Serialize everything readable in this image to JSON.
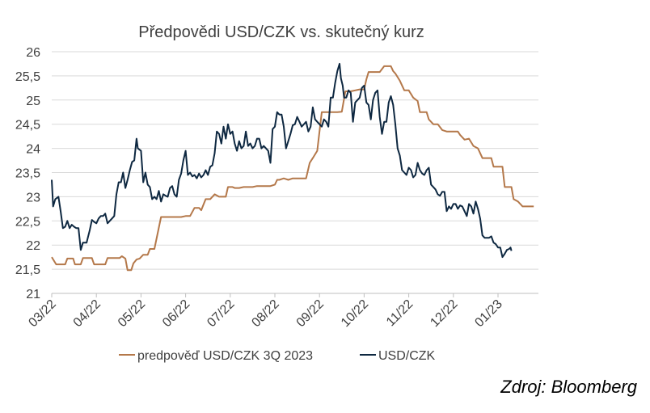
{
  "chart_data": {
    "type": "line",
    "title": "Předpovědi USD/CZK vs. skutečný kurz",
    "xlabel": "",
    "ylabel": "",
    "ylim": [
      21,
      26
    ],
    "y_ticks": [
      "21",
      "21,5",
      "22",
      "22,5",
      "23",
      "23,5",
      "24",
      "24,5",
      "25",
      "25,5",
      "26"
    ],
    "x_ticks": [
      "03/22",
      "04/22",
      "05/22",
      "06/22",
      "07/22",
      "08/22",
      "09/22",
      "10/22",
      "11/22",
      "12/22",
      "01/23"
    ],
    "grid": "horizontal",
    "legend_position": "bottom",
    "series": [
      {
        "name": "predpověď USD/CZK 3Q 2023",
        "color": "#B4784A",
        "points": [
          [
            0.0,
            21.75
          ],
          [
            0.1,
            21.6
          ],
          [
            0.3,
            21.6
          ],
          [
            0.35,
            21.72
          ],
          [
            0.48,
            21.72
          ],
          [
            0.52,
            21.6
          ],
          [
            0.65,
            21.6
          ],
          [
            0.7,
            21.73
          ],
          [
            0.9,
            21.73
          ],
          [
            0.95,
            21.6
          ],
          [
            1.2,
            21.6
          ],
          [
            1.25,
            21.73
          ],
          [
            1.52,
            21.73
          ],
          [
            1.57,
            21.77
          ],
          [
            1.65,
            21.72
          ],
          [
            1.7,
            21.48
          ],
          [
            1.78,
            21.48
          ],
          [
            1.83,
            21.62
          ],
          [
            1.9,
            21.7
          ],
          [
            1.97,
            21.72
          ],
          [
            2.05,
            21.8
          ],
          [
            2.15,
            21.8
          ],
          [
            2.2,
            21.92
          ],
          [
            2.3,
            21.92
          ],
          [
            2.45,
            22.58
          ],
          [
            2.6,
            22.58
          ],
          [
            2.9,
            22.58
          ],
          [
            3.0,
            22.6
          ],
          [
            3.1,
            22.6
          ],
          [
            3.2,
            22.77
          ],
          [
            3.3,
            22.77
          ],
          [
            3.35,
            22.72
          ],
          [
            3.45,
            22.95
          ],
          [
            3.55,
            22.95
          ],
          [
            3.65,
            23.05
          ],
          [
            3.75,
            23.0
          ],
          [
            3.9,
            23.0
          ],
          [
            3.95,
            23.2
          ],
          [
            4.05,
            23.2
          ],
          [
            4.1,
            23.18
          ],
          [
            4.2,
            23.18
          ],
          [
            4.3,
            23.2
          ],
          [
            4.5,
            23.2
          ],
          [
            4.6,
            23.22
          ],
          [
            4.9,
            23.22
          ],
          [
            5.0,
            23.25
          ],
          [
            5.05,
            23.35
          ],
          [
            5.1,
            23.35
          ],
          [
            5.2,
            23.38
          ],
          [
            5.3,
            23.35
          ],
          [
            5.4,
            23.38
          ],
          [
            5.7,
            23.38
          ],
          [
            5.78,
            23.7
          ],
          [
            5.85,
            23.8
          ],
          [
            5.95,
            23.95
          ],
          [
            6.05,
            24.75
          ],
          [
            6.15,
            24.75
          ],
          [
            6.4,
            24.75
          ],
          [
            6.5,
            24.76
          ],
          [
            6.58,
            25.18
          ],
          [
            6.7,
            25.18
          ],
          [
            6.8,
            25.2
          ],
          [
            6.9,
            25.22
          ],
          [
            7.0,
            25.22
          ],
          [
            7.05,
            25.43
          ],
          [
            7.1,
            25.58
          ],
          [
            7.35,
            25.58
          ],
          [
            7.45,
            25.7
          ],
          [
            7.6,
            25.7
          ],
          [
            7.65,
            25.6
          ],
          [
            7.7,
            25.55
          ],
          [
            7.8,
            25.4
          ],
          [
            7.9,
            25.2
          ],
          [
            8.0,
            25.2
          ],
          [
            8.1,
            25.05
          ],
          [
            8.2,
            24.98
          ],
          [
            8.25,
            24.75
          ],
          [
            8.4,
            24.75
          ],
          [
            8.45,
            24.6
          ],
          [
            8.55,
            24.5
          ],
          [
            8.65,
            24.5
          ],
          [
            8.75,
            24.38
          ],
          [
            8.85,
            24.35
          ],
          [
            9.1,
            24.35
          ],
          [
            9.15,
            24.28
          ],
          [
            9.25,
            24.18
          ],
          [
            9.35,
            24.2
          ],
          [
            9.45,
            24.05
          ],
          [
            9.55,
            24.0
          ],
          [
            9.65,
            23.8
          ],
          [
            9.85,
            23.8
          ],
          [
            9.9,
            23.62
          ],
          [
            10.1,
            23.62
          ],
          [
            10.15,
            23.2
          ],
          [
            10.3,
            23.2
          ],
          [
            10.35,
            22.95
          ],
          [
            10.45,
            22.9
          ],
          [
            10.55,
            22.8
          ],
          [
            10.8,
            22.8
          ]
        ]
      },
      {
        "name": "USD/CZK",
        "color": "#0E2841",
        "points": [
          [
            0.0,
            23.35
          ],
          [
            0.03,
            22.8
          ],
          [
            0.08,
            22.95
          ],
          [
            0.15,
            23.0
          ],
          [
            0.2,
            22.7
          ],
          [
            0.25,
            22.35
          ],
          [
            0.3,
            22.38
          ],
          [
            0.35,
            22.5
          ],
          [
            0.4,
            22.35
          ],
          [
            0.45,
            22.42
          ],
          [
            0.5,
            22.38
          ],
          [
            0.55,
            22.35
          ],
          [
            0.6,
            22.35
          ],
          [
            0.65,
            21.9
          ],
          [
            0.7,
            22.05
          ],
          [
            0.78,
            22.05
          ],
          [
            0.85,
            22.3
          ],
          [
            0.9,
            22.52
          ],
          [
            0.95,
            22.48
          ],
          [
            1.0,
            22.45
          ],
          [
            1.05,
            22.55
          ],
          [
            1.1,
            22.6
          ],
          [
            1.15,
            22.6
          ],
          [
            1.2,
            22.65
          ],
          [
            1.25,
            22.45
          ],
          [
            1.3,
            22.5
          ],
          [
            1.4,
            22.6
          ],
          [
            1.45,
            23.05
          ],
          [
            1.5,
            23.3
          ],
          [
            1.55,
            23.3
          ],
          [
            1.6,
            23.5
          ],
          [
            1.65,
            23.18
          ],
          [
            1.7,
            23.35
          ],
          [
            1.75,
            23.55
          ],
          [
            1.8,
            23.72
          ],
          [
            1.85,
            23.75
          ],
          [
            1.9,
            24.2
          ],
          [
            1.93,
            24.0
          ],
          [
            2.0,
            23.95
          ],
          [
            2.05,
            23.3
          ],
          [
            2.1,
            23.5
          ],
          [
            2.15,
            23.25
          ],
          [
            2.2,
            23.2
          ],
          [
            2.25,
            22.95
          ],
          [
            2.3,
            23.0
          ],
          [
            2.35,
            22.95
          ],
          [
            2.4,
            23.12
          ],
          [
            2.45,
            22.9
          ],
          [
            2.5,
            23.05
          ],
          [
            2.55,
            23.02
          ],
          [
            2.6,
            23.0
          ],
          [
            2.65,
            23.18
          ],
          [
            2.7,
            23.22
          ],
          [
            2.75,
            23.05
          ],
          [
            2.8,
            23.0
          ],
          [
            2.85,
            23.35
          ],
          [
            2.9,
            23.48
          ],
          [
            2.95,
            23.75
          ],
          [
            3.0,
            23.95
          ],
          [
            3.05,
            23.45
          ],
          [
            3.1,
            23.5
          ],
          [
            3.15,
            23.42
          ],
          [
            3.2,
            23.45
          ],
          [
            3.25,
            23.38
          ],
          [
            3.3,
            23.48
          ],
          [
            3.35,
            23.4
          ],
          [
            3.4,
            23.45
          ],
          [
            3.45,
            23.55
          ],
          [
            3.5,
            23.45
          ],
          [
            3.55,
            23.62
          ],
          [
            3.6,
            23.65
          ],
          [
            3.65,
            23.9
          ],
          [
            3.7,
            24.35
          ],
          [
            3.75,
            24.3
          ],
          [
            3.8,
            24.1
          ],
          [
            3.85,
            24.45
          ],
          [
            3.9,
            24.2
          ],
          [
            3.95,
            24.5
          ],
          [
            4.0,
            24.3
          ],
          [
            4.05,
            24.35
          ],
          [
            4.1,
            24.1
          ],
          [
            4.15,
            23.95
          ],
          [
            4.2,
            24.15
          ],
          [
            4.25,
            24.0
          ],
          [
            4.3,
            24.05
          ],
          [
            4.35,
            24.35
          ],
          [
            4.4,
            24.05
          ],
          [
            4.45,
            24.1
          ],
          [
            4.5,
            24.0
          ],
          [
            4.55,
            24.05
          ],
          [
            4.6,
            24.2
          ],
          [
            4.65,
            24.2
          ],
          [
            4.7,
            24.0
          ],
          [
            4.75,
            24.05
          ],
          [
            4.8,
            24.0
          ],
          [
            4.85,
            23.95
          ],
          [
            4.9,
            23.7
          ],
          [
            4.95,
            24.4
          ],
          [
            5.0,
            24.45
          ],
          [
            5.05,
            24.75
          ],
          [
            5.1,
            24.7
          ],
          [
            5.15,
            24.7
          ],
          [
            5.2,
            24.45
          ],
          [
            5.25,
            24.0
          ],
          [
            5.3,
            24.15
          ],
          [
            5.35,
            24.3
          ],
          [
            5.4,
            24.48
          ],
          [
            5.45,
            24.5
          ],
          [
            5.5,
            24.65
          ],
          [
            5.55,
            24.55
          ],
          [
            5.6,
            24.45
          ],
          [
            5.65,
            24.5
          ],
          [
            5.7,
            24.55
          ],
          [
            5.75,
            24.35
          ],
          [
            5.8,
            24.45
          ],
          [
            5.85,
            24.85
          ],
          [
            5.9,
            24.6
          ],
          [
            5.95,
            24.55
          ],
          [
            6.0,
            24.5
          ],
          [
            6.05,
            24.45
          ],
          [
            6.1,
            24.6
          ],
          [
            6.15,
            24.55
          ],
          [
            6.2,
            24.45
          ],
          [
            6.25,
            25.05
          ],
          [
            6.3,
            25.05
          ],
          [
            6.35,
            25.35
          ],
          [
            6.4,
            25.6
          ],
          [
            6.45,
            25.75
          ],
          [
            6.48,
            25.45
          ],
          [
            6.52,
            25.3
          ],
          [
            6.55,
            25.05
          ],
          [
            6.6,
            25.05
          ],
          [
            6.65,
            25.2
          ],
          [
            6.7,
            25.15
          ],
          [
            6.75,
            24.55
          ],
          [
            6.8,
            24.95
          ],
          [
            6.85,
            25.0
          ],
          [
            6.9,
            25.05
          ],
          [
            6.95,
            25.25
          ],
          [
            7.0,
            25.3
          ],
          [
            7.05,
            24.95
          ],
          [
            7.1,
            24.9
          ],
          [
            7.15,
            24.6
          ],
          [
            7.2,
            25.0
          ],
          [
            7.25,
            25.15
          ],
          [
            7.3,
            25.2
          ],
          [
            7.35,
            24.65
          ],
          [
            7.4,
            24.3
          ],
          [
            7.45,
            24.55
          ],
          [
            7.5,
            24.55
          ],
          [
            7.55,
            24.95
          ],
          [
            7.6,
            25.08
          ],
          [
            7.65,
            24.9
          ],
          [
            7.7,
            24.5
          ],
          [
            7.75,
            24.0
          ],
          [
            7.8,
            23.85
          ],
          [
            7.85,
            23.55
          ],
          [
            7.9,
            23.5
          ],
          [
            7.95,
            23.45
          ],
          [
            8.0,
            23.6
          ],
          [
            8.05,
            23.55
          ],
          [
            8.1,
            23.4
          ],
          [
            8.15,
            23.45
          ],
          [
            8.2,
            23.7
          ],
          [
            8.25,
            23.55
          ],
          [
            8.3,
            23.48
          ],
          [
            8.35,
            23.45
          ],
          [
            8.4,
            23.55
          ],
          [
            8.45,
            23.6
          ],
          [
            8.5,
            23.25
          ],
          [
            8.55,
            23.2
          ],
          [
            8.6,
            23.15
          ],
          [
            8.65,
            23.05
          ],
          [
            8.7,
            23.02
          ],
          [
            8.75,
            23.1
          ],
          [
            8.8,
            23.1
          ],
          [
            8.85,
            22.7
          ],
          [
            8.9,
            22.8
          ],
          [
            8.95,
            22.75
          ],
          [
            9.0,
            22.85
          ],
          [
            9.05,
            22.85
          ],
          [
            9.1,
            22.75
          ],
          [
            9.15,
            22.82
          ],
          [
            9.2,
            22.8
          ],
          [
            9.25,
            22.7
          ],
          [
            9.3,
            22.6
          ],
          [
            9.35,
            22.85
          ],
          [
            9.4,
            22.8
          ],
          [
            9.45,
            22.65
          ],
          [
            9.5,
            22.9
          ],
          [
            9.55,
            22.75
          ],
          [
            9.6,
            22.55
          ],
          [
            9.65,
            22.2
          ],
          [
            9.7,
            22.15
          ],
          [
            9.8,
            22.15
          ],
          [
            9.85,
            22.18
          ],
          [
            9.9,
            22.05
          ],
          [
            9.95,
            22.02
          ],
          [
            10.0,
            21.95
          ],
          [
            10.05,
            21.95
          ],
          [
            10.1,
            21.75
          ],
          [
            10.15,
            21.82
          ],
          [
            10.2,
            21.9
          ],
          [
            10.25,
            21.92
          ],
          [
            10.28,
            21.95
          ],
          [
            10.3,
            21.88
          ]
        ]
      }
    ]
  },
  "source": "Zdroj: Bloomberg"
}
